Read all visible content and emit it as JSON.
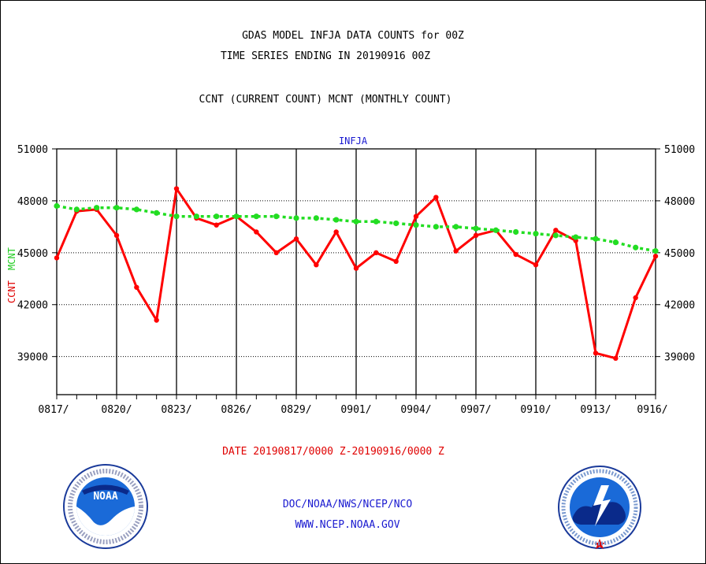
{
  "header": {
    "line1": "GDAS MODEL INFJA DATA COUNTS for 00Z",
    "line2": "TIME SERIES ENDING IN 20190916 00Z",
    "line3": "CCNT (CURRENT COUNT) MCNT (MONTHLY COUNT)"
  },
  "footer": {
    "date_range": "DATE 20190817/0000 Z-20190916/0000 Z",
    "org": "DOC/NOAA/NWS/NCEP/NCO",
    "url": "WWW.NCEP.NOAA.GOV"
  },
  "logos": {
    "left": {
      "center": "NOAA",
      "ring": "NATIONAL OCEANIC AND ATMOSPHERIC ADMINISTRATION · U.S. DEPARTMENT OF COMMERCE"
    },
    "right": {
      "ring": "NATIONAL WEATHER SERVICE"
    }
  },
  "colors": {
    "ccnt": "#ff0000",
    "mcnt": "#22dd22",
    "grid": "#000000",
    "title_blue": "#1a1ad0"
  },
  "chart_data": {
    "type": "line",
    "title": "INFJA",
    "ylabel_series": [
      "CCNT",
      "MCNT"
    ],
    "ylim": [
      36800,
      51000
    ],
    "yticks": [
      39000,
      42000,
      45000,
      48000,
      51000
    ],
    "ytick_labels": [
      "39000",
      "42000",
      "45000",
      "48000",
      "51000"
    ],
    "xtick_labels": [
      "0817/",
      "0820/",
      "0823/",
      "0826/",
      "0829/",
      "0901/",
      "0904/",
      "0907/",
      "0910/",
      "0913/",
      "0916/"
    ],
    "grid": true,
    "x": [
      "0817",
      "0818",
      "0819",
      "0820",
      "0821",
      "0822",
      "0823",
      "0824",
      "0825",
      "0826",
      "0827",
      "0828",
      "0829",
      "0830",
      "0831",
      "0901",
      "0902",
      "0903",
      "0904",
      "0905",
      "0906",
      "0907",
      "0908",
      "0909",
      "0910",
      "0911",
      "0912",
      "0913",
      "0914",
      "0915",
      "0916"
    ],
    "series": [
      {
        "name": "CCNT",
        "color": "#ff0000",
        "values": [
          44700,
          47400,
          47500,
          46000,
          43000,
          41100,
          48700,
          47000,
          46600,
          47100,
          46200,
          45000,
          45800,
          44300,
          46200,
          44100,
          45000,
          44500,
          47100,
          48200,
          45100,
          46000,
          46300,
          44900,
          44300,
          46300,
          45700,
          39200,
          38900,
          42400,
          44800
        ]
      },
      {
        "name": "MCNT",
        "color": "#22dd22",
        "values": [
          47700,
          47500,
          47600,
          47600,
          47500,
          47300,
          47100,
          47100,
          47100,
          47100,
          47100,
          47100,
          47000,
          47000,
          46900,
          46800,
          46800,
          46700,
          46600,
          46500,
          46500,
          46400,
          46300,
          46200,
          46100,
          46000,
          45900,
          45800,
          45600,
          45300,
          45100
        ]
      }
    ]
  }
}
